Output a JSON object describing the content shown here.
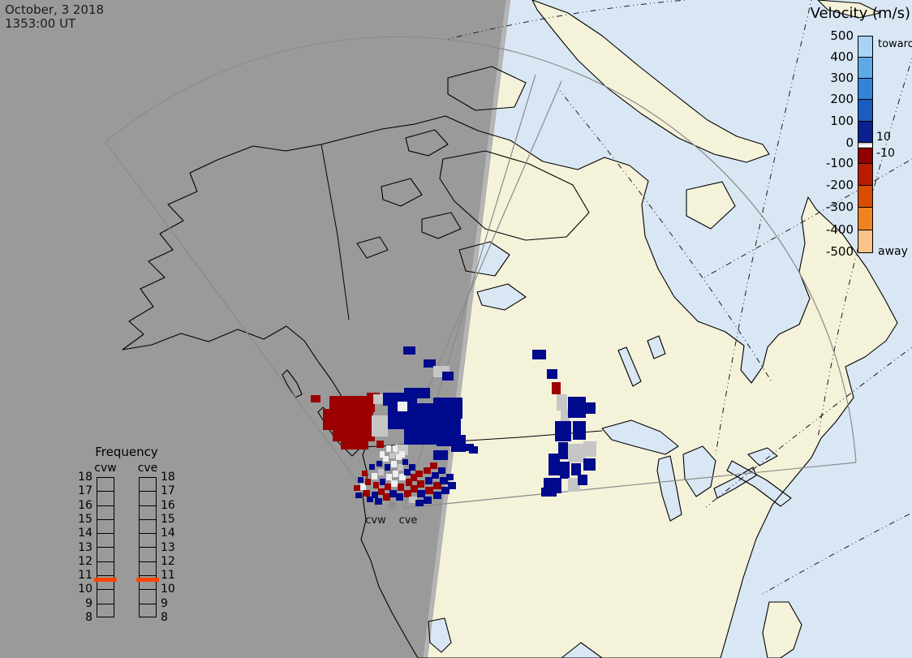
{
  "header": {
    "date_line1": "October, 3 2018",
    "date_line2": "1353:00 UT"
  },
  "colorbar": {
    "title": "Velocity (m/s)",
    "toward_label": "toward",
    "away_label": "away",
    "pos_ticks": [
      "500",
      "400",
      "300",
      "200",
      "100",
      "0"
    ],
    "inner_ticks": [
      "10",
      "-10"
    ],
    "neg_ticks": [
      "-100",
      "-200",
      "-300",
      "-400",
      "-500"
    ],
    "blue_colors": [
      "#a9d3f5",
      "#5fa8e6",
      "#3383d6",
      "#1c5cc0",
      "#0b2090"
    ],
    "zero_color": "#c8c8c8",
    "red_colors": [
      "#8f0000",
      "#b81c00",
      "#d84d00",
      "#ef8322",
      "#f9c488"
    ]
  },
  "frequency_legend": {
    "title": "Frequency",
    "left_radar": "cvw",
    "right_radar": "cve",
    "ticks": [
      "18",
      "17",
      "16",
      "15",
      "14",
      "13",
      "12",
      "11",
      "10",
      "9",
      "8"
    ],
    "marker_color": "#ff4500"
  },
  "map_labels": {
    "west_site": "cvw",
    "east_site": "cve"
  },
  "colors": {
    "ocean": "#d9e7f4",
    "land": "#f5f2da",
    "night_gray": "#9a9a9a",
    "twilight_edge": "#b5b5b5",
    "coastline": "#000000",
    "fov_line": "#8a8a8a",
    "radar_dot": "#8f8f8f"
  },
  "scatter": {
    "palette": {
      "R": "#9c0000",
      "B": "#000a8c",
      "G": "#c6c6c6",
      "W": "#efefef"
    },
    "cells": [
      [
        383,
        487,
        12,
        9,
        "R"
      ],
      [
        406,
        488,
        56,
        20,
        "R"
      ],
      [
        398,
        504,
        62,
        26,
        "R"
      ],
      [
        410,
        526,
        52,
        18,
        "R"
      ],
      [
        420,
        542,
        34,
        12,
        "R"
      ],
      [
        452,
        484,
        16,
        12,
        "R"
      ],
      [
        464,
        543,
        9,
        9,
        "R"
      ],
      [
        460,
        486,
        22,
        12,
        "G"
      ],
      [
        458,
        512,
        20,
        26,
        "G"
      ],
      [
        487,
        548,
        16,
        13,
        "G"
      ],
      [
        516,
        506,
        12,
        10,
        "G"
      ],
      [
        542,
        520,
        14,
        12,
        "G"
      ],
      [
        472,
        484,
        42,
        16,
        "B"
      ],
      [
        498,
        478,
        32,
        13,
        "B"
      ],
      [
        478,
        497,
        62,
        32,
        "B"
      ],
      [
        534,
        490,
        36,
        26,
        "B"
      ],
      [
        522,
        514,
        46,
        22,
        "B"
      ],
      [
        498,
        528,
        42,
        20,
        "B"
      ],
      [
        538,
        534,
        28,
        16,
        "B"
      ],
      [
        556,
        545,
        18,
        12,
        "B"
      ],
      [
        534,
        555,
        18,
        12,
        "B"
      ],
      [
        560,
        536,
        14,
        10,
        "B"
      ],
      [
        572,
        547,
        12,
        9,
        "B"
      ],
      [
        578,
        550,
        11,
        9,
        "B"
      ],
      [
        490,
        495,
        12,
        12,
        "W"
      ],
      [
        497,
        427,
        15,
        10,
        "B"
      ],
      [
        522,
        443,
        15,
        10,
        "B"
      ],
      [
        534,
        451,
        20,
        14,
        "G"
      ],
      [
        545,
        458,
        14,
        11,
        "B"
      ],
      [
        656,
        431,
        17,
        12,
        "B"
      ],
      [
        674,
        455,
        13,
        12,
        "B"
      ],
      [
        680,
        471,
        11,
        15,
        "R"
      ],
      [
        686,
        486,
        13,
        20,
        "G"
      ],
      [
        691,
        504,
        11,
        16,
        "G"
      ],
      [
        700,
        489,
        22,
        26,
        "B"
      ],
      [
        722,
        496,
        12,
        14,
        "B"
      ],
      [
        684,
        519,
        20,
        25,
        "B"
      ],
      [
        706,
        519,
        16,
        23,
        "B"
      ],
      [
        688,
        545,
        12,
        21,
        "B"
      ],
      [
        700,
        547,
        22,
        23,
        "G"
      ],
      [
        719,
        544,
        16,
        19,
        "G"
      ],
      [
        719,
        565,
        15,
        15,
        "B"
      ],
      [
        676,
        559,
        14,
        27,
        "B"
      ],
      [
        690,
        569,
        12,
        21,
        "B"
      ],
      [
        670,
        589,
        22,
        19,
        "B"
      ],
      [
        667,
        601,
        19,
        11,
        "B"
      ],
      [
        704,
        571,
        12,
        15,
        "B"
      ],
      [
        700,
        589,
        15,
        17,
        "G"
      ],
      [
        712,
        585,
        12,
        13,
        "B"
      ],
      [
        436,
        598,
        8,
        7,
        "R"
      ],
      [
        438,
        607,
        8,
        7,
        "B"
      ],
      [
        441,
        588,
        7,
        7,
        "B"
      ],
      [
        444,
        596,
        7,
        8,
        "W"
      ],
      [
        446,
        580,
        7,
        7,
        "R"
      ],
      [
        450,
        590,
        7,
        8,
        "R"
      ],
      [
        448,
        604,
        8,
        8,
        "R"
      ],
      [
        452,
        612,
        8,
        7,
        "B"
      ],
      [
        455,
        572,
        7,
        7,
        "B"
      ],
      [
        458,
        583,
        7,
        8,
        "W"
      ],
      [
        460,
        594,
        7,
        8,
        "R"
      ],
      [
        458,
        606,
        8,
        8,
        "B"
      ],
      [
        464,
        568,
        7,
        7,
        "B"
      ],
      [
        466,
        578,
        7,
        8,
        "G"
      ],
      [
        468,
        590,
        7,
        8,
        "B"
      ],
      [
        466,
        602,
        8,
        8,
        "R"
      ],
      [
        462,
        614,
        9,
        8,
        "B"
      ],
      [
        472,
        562,
        7,
        7,
        "W"
      ],
      [
        474,
        572,
        7,
        8,
        "B"
      ],
      [
        476,
        584,
        7,
        8,
        "W"
      ],
      [
        474,
        596,
        8,
        8,
        "R"
      ],
      [
        472,
        608,
        9,
        9,
        "R"
      ],
      [
        480,
        558,
        7,
        7,
        "G"
      ],
      [
        482,
        568,
        7,
        8,
        "W"
      ],
      [
        484,
        580,
        7,
        8,
        "W"
      ],
      [
        482,
        592,
        8,
        8,
        "W"
      ],
      [
        480,
        604,
        9,
        9,
        "B"
      ],
      [
        488,
        560,
        7,
        7,
        "W"
      ],
      [
        490,
        572,
        7,
        8,
        "G"
      ],
      [
        492,
        584,
        8,
        8,
        "W"
      ],
      [
        490,
        596,
        8,
        9,
        "R"
      ],
      [
        488,
        608,
        9,
        9,
        "B"
      ],
      [
        496,
        566,
        7,
        7,
        "B"
      ],
      [
        498,
        578,
        8,
        8,
        "B"
      ],
      [
        500,
        590,
        8,
        9,
        "R"
      ],
      [
        498,
        604,
        9,
        9,
        "R"
      ],
      [
        504,
        572,
        8,
        8,
        "B"
      ],
      [
        506,
        584,
        8,
        9,
        "R"
      ],
      [
        506,
        598,
        9,
        9,
        "R"
      ],
      [
        504,
        612,
        10,
        8,
        "G"
      ],
      [
        512,
        580,
        9,
        8,
        "R"
      ],
      [
        514,
        592,
        9,
        9,
        "R"
      ],
      [
        514,
        604,
        10,
        9,
        "B"
      ],
      [
        512,
        616,
        10,
        8,
        "B"
      ],
      [
        522,
        576,
        9,
        8,
        "R"
      ],
      [
        524,
        588,
        9,
        9,
        "B"
      ],
      [
        524,
        600,
        10,
        9,
        "R"
      ],
      [
        522,
        612,
        10,
        9,
        "B"
      ],
      [
        532,
        582,
        9,
        8,
        "B"
      ],
      [
        534,
        594,
        10,
        9,
        "R"
      ],
      [
        534,
        606,
        10,
        9,
        "B"
      ],
      [
        542,
        588,
        10,
        9,
        "B"
      ],
      [
        544,
        600,
        10,
        9,
        "B"
      ],
      [
        552,
        594,
        10,
        9,
        "B"
      ],
      [
        530,
        570,
        9,
        8,
        "R"
      ],
      [
        540,
        576,
        9,
        8,
        "B"
      ],
      [
        550,
        584,
        9,
        8,
        "B"
      ],
      [
        476,
        549,
        6,
        8,
        "W"
      ],
      [
        484,
        549,
        6,
        8,
        "W"
      ],
      [
        468,
        556,
        6,
        8,
        "W"
      ],
      [
        492,
        556,
        7,
        8,
        "W"
      ]
    ]
  }
}
